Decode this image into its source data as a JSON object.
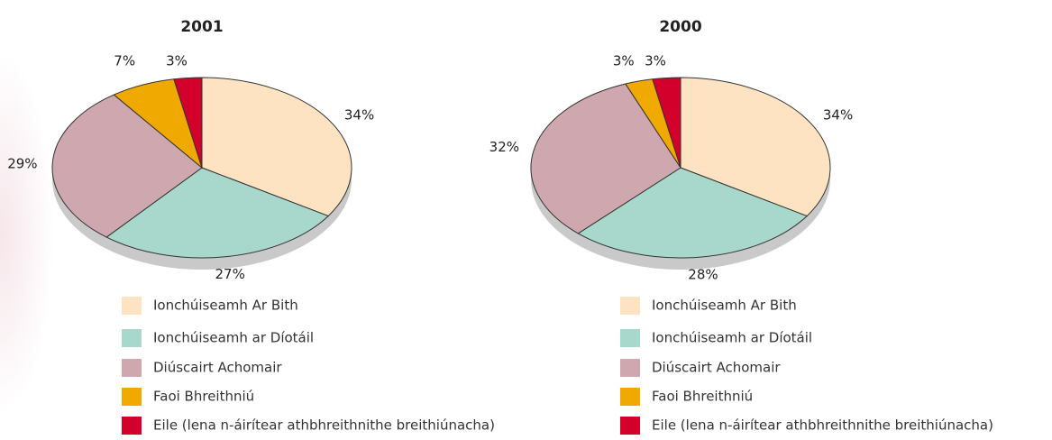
{
  "chart_data": [
    {
      "type": "pie",
      "title": "2001",
      "categories": [
        "Ionchúiseamh Ar Bith",
        "Ionchúiseamh ar Díotáil",
        "Diúscairt Achomair",
        "Faoi Bhreithniú",
        "Eile (lena n-áirítear athbhreithnithe breithiúnacha)"
      ],
      "values": [
        34,
        27,
        29,
        7,
        3
      ],
      "value_labels": [
        "34%",
        "27%",
        "29%",
        "7%",
        "3%"
      ],
      "colors": [
        "#fde3c1",
        "#a7d8cb",
        "#cfa7af",
        "#f0a900",
        "#d2002b"
      ]
    },
    {
      "type": "pie",
      "title": "2000",
      "categories": [
        "Ionchúiseamh Ar Bith",
        "Ionchúiseamh ar Díotáil",
        "Diúscairt Achomair",
        "Faoi Bhreithniú",
        "Eile (lena n-áirítear athbhreithnithe breithiúnacha)"
      ],
      "values": [
        34,
        28,
        32,
        3,
        3
      ],
      "value_labels": [
        "34%",
        "28%",
        "32%",
        "3%",
        "3%"
      ],
      "colors": [
        "#fde3c1",
        "#a7d8cb",
        "#cfa7af",
        "#f0a900",
        "#d2002b"
      ]
    }
  ]
}
